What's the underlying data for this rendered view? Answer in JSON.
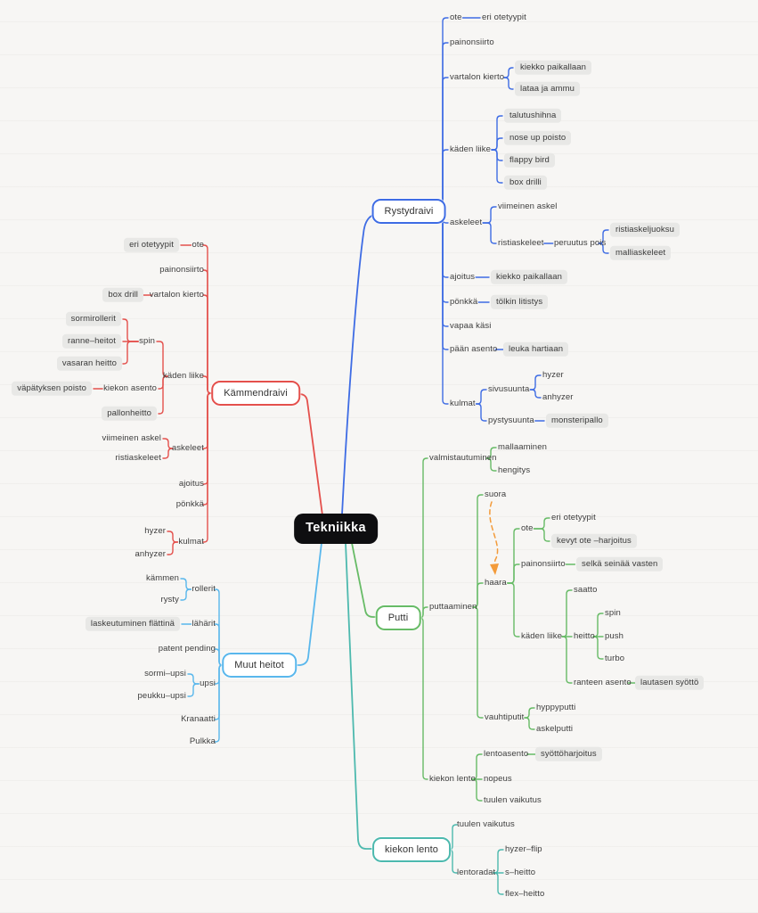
{
  "colors": {
    "rystydraivi": "#3e6ce4",
    "kammendraivi": "#e4504c",
    "muut_heitot": "#59b7ec",
    "putti": "#67bb66",
    "kiekon_lento": "#4db9ae",
    "arrow": "#f39b3a",
    "root_bg": "#0e0e10",
    "highlight_bg": "#e8e8e6"
  },
  "annotations": {
    "arrow": {
      "from": "suora",
      "to": "haara",
      "style": "dashed",
      "color": "#f39b3a"
    }
  },
  "root": {
    "id": "tekniikka",
    "label": "Tekniikka",
    "style": "root",
    "children": [
      {
        "id": "b1",
        "label": "Rystydraivi",
        "style": "branch",
        "color": "#3e6ce4",
        "children": [
          {
            "id": "b1_ote",
            "label": "ote",
            "children": [
              {
                "id": "b1_eri",
                "label": "eri otetyypit"
              }
            ]
          },
          {
            "id": "b1_pain",
            "label": "painonsiirto"
          },
          {
            "id": "b1_vart",
            "label": "vartalon kierto",
            "children": [
              {
                "id": "b1_kiek1",
                "label": "kiekko paikallaan",
                "style": "gray"
              },
              {
                "id": "b1_lataa",
                "label": "lataa ja ammu",
                "style": "gray"
              }
            ]
          },
          {
            "id": "b1_kade",
            "label": "käden liike",
            "children": [
              {
                "id": "b1_talu",
                "label": "talutushihna",
                "style": "gray"
              },
              {
                "id": "b1_nose",
                "label": "nose up poisto",
                "style": "gray"
              },
              {
                "id": "b1_flap",
                "label": "flappy bird",
                "style": "gray"
              },
              {
                "id": "b1_boxd",
                "label": "box drilli",
                "style": "gray"
              }
            ]
          },
          {
            "id": "b1_aske",
            "label": "askeleet",
            "children": [
              {
                "id": "b1_viim",
                "label": "viimeinen askel"
              },
              {
                "id": "b1_rist",
                "label": "ristiaskeleet",
                "children": [
                  {
                    "id": "b1_peru",
                    "label": "peruutus pois",
                    "children": [
                      {
                        "id": "b1_rjuo",
                        "label": "ristiaskeljuoksu",
                        "style": "gray"
                      },
                      {
                        "id": "b1_mall",
                        "label": "malliaskeleet",
                        "style": "gray"
                      }
                    ]
                  }
                ]
              }
            ]
          },
          {
            "id": "b1_ajoi",
            "label": "ajoitus",
            "children": [
              {
                "id": "b1_kiek2",
                "label": "kiekko paikallaan",
                "style": "gray"
              }
            ]
          },
          {
            "id": "b1_ponk",
            "label": "pönkkä",
            "children": [
              {
                "id": "b1_tolk",
                "label": "tölkin litistys",
                "style": "gray"
              }
            ]
          },
          {
            "id": "b1_vapa",
            "label": "vapaa käsi"
          },
          {
            "id": "b1_paan",
            "label": "pään asento",
            "children": [
              {
                "id": "b1_leuk",
                "label": "leuka hartiaan",
                "style": "gray"
              }
            ]
          },
          {
            "id": "b1_kulm",
            "label": "kulmat",
            "children": [
              {
                "id": "b1_sivu",
                "label": "sivusuunta",
                "children": [
                  {
                    "id": "b1_hyze",
                    "label": "hyzer"
                  },
                  {
                    "id": "b1_anhy",
                    "label": "anhyzer"
                  }
                ]
              },
              {
                "id": "b1_pyst",
                "label": "pystysuunta",
                "children": [
                  {
                    "id": "b1_mons",
                    "label": "monsteripallo",
                    "style": "gray"
                  }
                ]
              }
            ]
          }
        ]
      },
      {
        "id": "b2",
        "label": "Kämmendraivi",
        "style": "branch",
        "color": "#e4504c",
        "children": [
          {
            "id": "b2_ote",
            "label": "ote",
            "children": [
              {
                "id": "b2_eri",
                "label": "eri otetyypit",
                "style": "gray"
              }
            ]
          },
          {
            "id": "b2_pain",
            "label": "painonsiirto"
          },
          {
            "id": "b2_vart",
            "label": "vartalon kierto",
            "children": [
              {
                "id": "b2_boxd",
                "label": "box drill",
                "style": "gray"
              }
            ]
          },
          {
            "id": "b2_kade",
            "label": "käden liike",
            "children": [
              {
                "id": "b2_spin",
                "label": "spin",
                "children": [
                  {
                    "id": "b2_sorm",
                    "label": "sormirollerit",
                    "style": "gray"
                  },
                  {
                    "id": "b2_rann",
                    "label": "ranne–heitot",
                    "style": "gray"
                  },
                  {
                    "id": "b2_vasa",
                    "label": "vasaran heitto",
                    "style": "gray"
                  }
                ]
              },
              {
                "id": "b2_kiekas",
                "label": "kiekon asento",
                "children": [
                  {
                    "id": "b2_vapa",
                    "label": "väpätyksen poisto",
                    "style": "gray"
                  }
                ]
              },
              {
                "id": "b2_pall",
                "label": "pallonheitto",
                "style": "gray"
              }
            ]
          },
          {
            "id": "b2_aske",
            "label": "askeleet",
            "children": [
              {
                "id": "b2_viim",
                "label": "viimeinen askel"
              },
              {
                "id": "b2_rist",
                "label": "ristiaskeleet"
              }
            ]
          },
          {
            "id": "b2_ajoi",
            "label": "ajoitus"
          },
          {
            "id": "b2_ponk",
            "label": "pönkkä"
          },
          {
            "id": "b2_kulm",
            "label": "kulmat",
            "children": [
              {
                "id": "b2_hyze",
                "label": "hyzer"
              },
              {
                "id": "b2_anhy",
                "label": "anhyzer"
              }
            ]
          }
        ]
      },
      {
        "id": "b3",
        "label": "Muut heitot",
        "style": "branch",
        "color": "#59b7ec",
        "children": [
          {
            "id": "b3_roll",
            "label": "rollerit",
            "children": [
              {
                "id": "b3_kamm",
                "label": "kämmen"
              },
              {
                "id": "b3_ryst",
                "label": "rysty"
              }
            ]
          },
          {
            "id": "b3_laha",
            "label": "lähärit",
            "children": [
              {
                "id": "b3_lask",
                "label": "laskeutuminen flättinä",
                "style": "gray"
              }
            ]
          },
          {
            "id": "b3_pate",
            "label": "patent pending"
          },
          {
            "id": "b3_upsi",
            "label": "upsi",
            "children": [
              {
                "id": "b3_sorm",
                "label": "sormi–upsi"
              },
              {
                "id": "b3_peuk",
                "label": "peukku–upsi"
              }
            ]
          },
          {
            "id": "b3_kran",
            "label": "Kranaatti"
          },
          {
            "id": "b3_pulk",
            "label": "Pulkka"
          }
        ]
      },
      {
        "id": "b4",
        "label": "Putti",
        "style": "branch",
        "color": "#67bb66",
        "children": [
          {
            "id": "b4_valm",
            "label": "valmistautuminen",
            "children": [
              {
                "id": "b4_mall",
                "label": "mallaaminen"
              },
              {
                "id": "b4_heng",
                "label": "hengitys"
              }
            ]
          },
          {
            "id": "b4_putt",
            "label": "puttaaminen",
            "children": [
              {
                "id": "b4_suor",
                "label": "suora"
              },
              {
                "id": "b4_haar",
                "label": "haara",
                "children": [
                  {
                    "id": "b4_ote",
                    "label": "ote",
                    "children": [
                      {
                        "id": "b4_eri",
                        "label": "eri otetyypit"
                      },
                      {
                        "id": "b4_kevy",
                        "label": "kevyt ote –harjoitus",
                        "style": "gray"
                      }
                    ]
                  },
                  {
                    "id": "b4_pain",
                    "label": "painonsiirto",
                    "children": [
                      {
                        "id": "b4_selk",
                        "label": "selkä seinää vasten",
                        "style": "gray"
                      }
                    ]
                  },
                  {
                    "id": "b4_kade",
                    "label": "käden liike",
                    "children": [
                      {
                        "id": "b4_saat",
                        "label": "saatto"
                      },
                      {
                        "id": "b4_heit",
                        "label": "heitto",
                        "children": [
                          {
                            "id": "b4_spin",
                            "label": "spin"
                          },
                          {
                            "id": "b4_push",
                            "label": "push"
                          },
                          {
                            "id": "b4_turb",
                            "label": "turbo"
                          }
                        ]
                      },
                      {
                        "id": "b4_rant",
                        "label": "ranteen asento",
                        "children": [
                          {
                            "id": "b4_laut",
                            "label": "lautasen syöttö",
                            "style": "gray"
                          }
                        ]
                      }
                    ]
                  }
                ]
              },
              {
                "id": "b4_vauh",
                "label": "vauhtiputit",
                "children": [
                  {
                    "id": "b4_hypp",
                    "label": "hyppyputti"
                  },
                  {
                    "id": "b4_aske",
                    "label": "askelputti"
                  }
                ]
              }
            ]
          },
          {
            "id": "b4_klen",
            "label": "kiekon lento",
            "children": [
              {
                "id": "b4_lent",
                "label": "lentoasento",
                "children": [
                  {
                    "id": "b4_syot",
                    "label": "syöttöharjoitus",
                    "style": "gray"
                  }
                ]
              },
              {
                "id": "b4_nope",
                "label": "nopeus"
              },
              {
                "id": "b4_tuul",
                "label": "tuulen vaikutus"
              }
            ]
          }
        ]
      },
      {
        "id": "b5",
        "label": "kiekon lento",
        "style": "branch",
        "color": "#4db9ae",
        "children": [
          {
            "id": "b5_tuul",
            "label": "tuulen vaikutus"
          },
          {
            "id": "b5_lrad",
            "label": "lentoradat",
            "children": [
              {
                "id": "b5_hyfl",
                "label": "hyzer–flip"
              },
              {
                "id": "b5_shei",
                "label": "s–heitto"
              },
              {
                "id": "b5_flex",
                "label": "flex–heitto"
              }
            ]
          }
        ]
      }
    ]
  }
}
